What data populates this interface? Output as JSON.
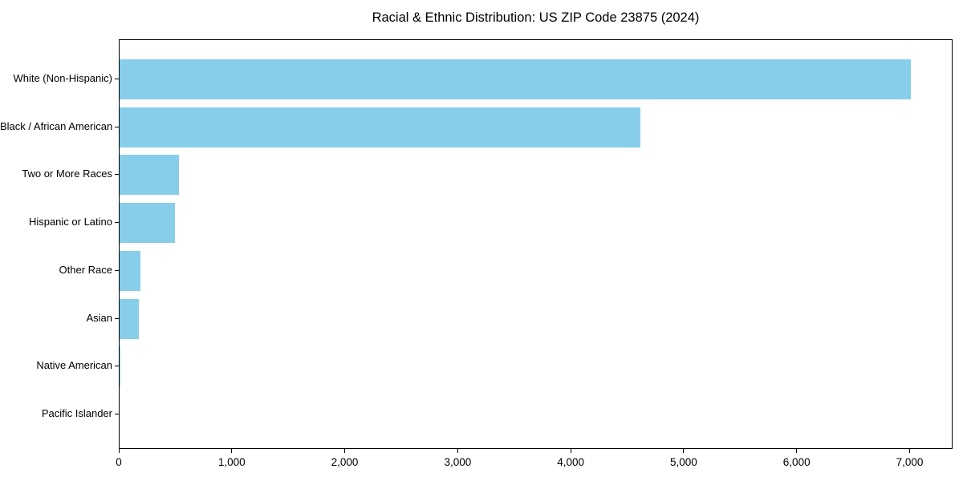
{
  "chart_data": {
    "type": "bar",
    "orientation": "horizontal",
    "title": "Racial & Ethnic Distribution: US ZIP Code 23875 (2024)",
    "categories": [
      "White (Non-Hispanic)",
      "Black / African American",
      "Two or More Races",
      "Hispanic or Latino",
      "Other Race",
      "Asian",
      "Native American",
      "Pacific Islander"
    ],
    "values": [
      7015,
      4620,
      525,
      490,
      185,
      170,
      10,
      0
    ],
    "bar_color": "#87CEEB",
    "axis_color": "#000000",
    "background_color": "#ffffff",
    "xlabel": "",
    "ylabel": "",
    "xlim": [
      0,
      7380
    ],
    "x_tick_values": [
      0,
      1000,
      2000,
      3000,
      4000,
      5000,
      6000,
      7000
    ],
    "x_tick_labels": [
      "0",
      "1,000",
      "2,000",
      "3,000",
      "4,000",
      "5,000",
      "6,000",
      "7,000"
    ],
    "grid": false,
    "legend": null
  }
}
